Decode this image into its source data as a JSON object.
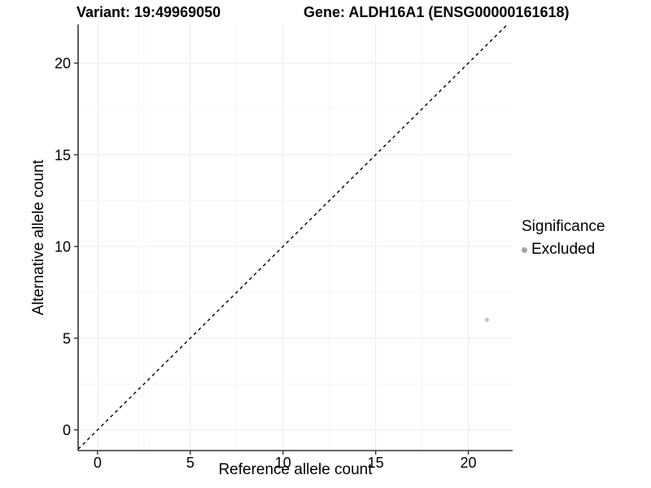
{
  "chart_data": {
    "type": "scatter",
    "titles": {
      "variant": "Variant: 19:49969050",
      "gene": "Gene: ALDH16A1 (ENSG00000161618)"
    },
    "xlabel": "Reference allele count",
    "ylabel": "Alternative allele count",
    "x_ticks": [
      0,
      5,
      10,
      15,
      20
    ],
    "y_ticks": [
      0,
      5,
      10,
      15,
      20
    ],
    "xlim": [
      -1.05,
      22.39
    ],
    "ylim": [
      -1.13,
      22.11
    ],
    "grid": {
      "major": true,
      "minor": true
    },
    "identity_line": {
      "slope": 1,
      "intercept": 0,
      "style": "dashed",
      "color": "#000000"
    },
    "points": [
      {
        "x": 21,
        "y": 6,
        "significance": "Excluded"
      }
    ],
    "point_color": "#c5c5c5",
    "point_radius_px": 2.6,
    "legend": {
      "title": "Significance",
      "position": "right",
      "items": [
        {
          "label": "Excluded",
          "color": "#a5a5a5"
        }
      ]
    },
    "colors": {
      "axis_line": "#333333",
      "grid_major": "#ececec",
      "grid_minor": "#f5f5f5",
      "text": "#000000"
    }
  }
}
